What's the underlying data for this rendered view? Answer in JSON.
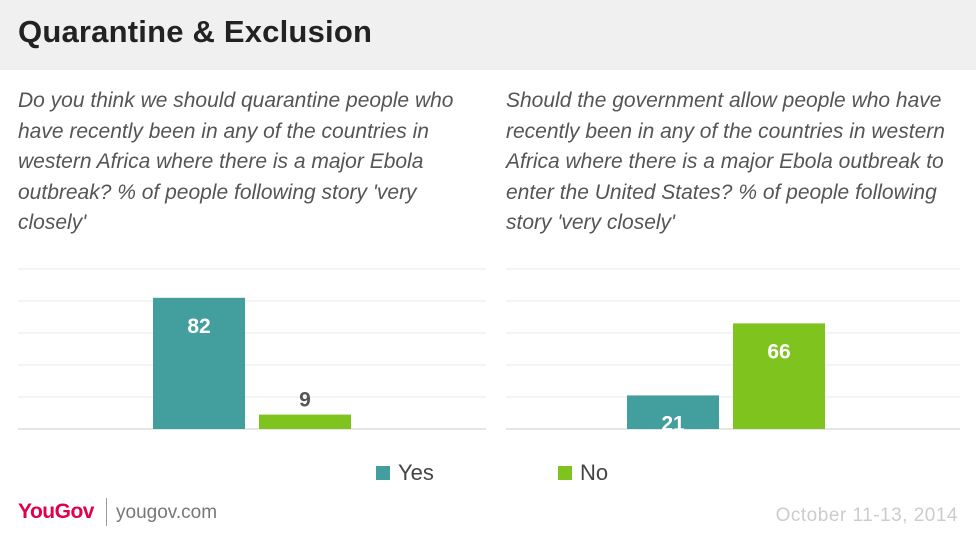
{
  "header": {
    "title": "Quarantine & Exclusion"
  },
  "questions": {
    "left": "Do you think we should quarantine people who have recently been in any of the countries in western Africa where there is a major Ebola outbreak? % of people following story 'very closely'",
    "right": "Should the government allow people who have recently been in any of the countries in western Africa where there is a major Ebola outbreak to enter the United States? % of people following story 'very closely'"
  },
  "colors": {
    "yes": "#439e9e",
    "no": "#7fc41e",
    "header_bg": "#f0f0f0"
  },
  "chart_data": [
    {
      "type": "bar",
      "categories": [
        "Yes",
        "No"
      ],
      "values": [
        82,
        9
      ],
      "ylim": [
        0,
        100
      ],
      "grid": true
    },
    {
      "type": "bar",
      "categories": [
        "Yes",
        "No"
      ],
      "values": [
        21,
        66
      ],
      "ylim": [
        0,
        100
      ],
      "grid": true
    }
  ],
  "legend": [
    {
      "label": "Yes",
      "color": "#439e9e"
    },
    {
      "label": "No",
      "color": "#7fc41e"
    }
  ],
  "footer": {
    "logo": "YouGov",
    "site": "yougov.com",
    "date": "October 11-13, 2014"
  }
}
